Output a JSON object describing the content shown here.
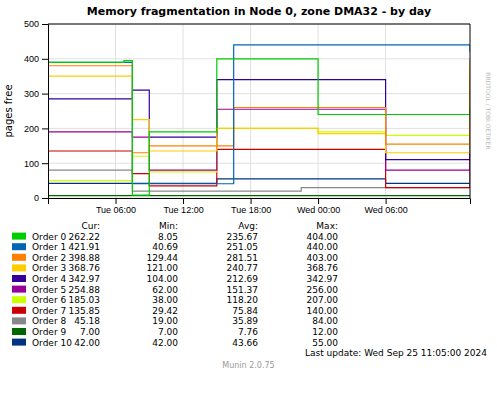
{
  "chart_data": {
    "type": "line",
    "line_style": "step",
    "title": "Memory fragmentation in Node 0, zone DMA32 - by day",
    "y_label": "pages free",
    "categories": [
      null,
      null,
      null,
      null,
      null,
      null,
      null,
      null,
      "Tue 06:00",
      null,
      null,
      null,
      null,
      null,
      null,
      null,
      "Tue 12:00",
      null,
      null,
      null,
      null,
      null,
      null,
      null,
      "Tue 18:00",
      null,
      null,
      null,
      null,
      null,
      null,
      null,
      "Wed 00:00",
      null,
      null,
      null,
      null,
      null,
      null,
      null,
      "Wed 06:00",
      null,
      null,
      null,
      null,
      null,
      null,
      null,
      null,
      null,
      null
    ],
    "ylim": [
      0,
      500
    ],
    "yticks": [
      0,
      100,
      200,
      300,
      400,
      500
    ],
    "grid": true,
    "stat_names": [
      "Cur:",
      "Min:",
      "Avg:",
      "Max:"
    ],
    "annotations": [
      "RRDTOOL / TOBI OETIKER",
      "Last update: Wed Sep 25 11:05:00 2024",
      "Munin 2.0.75"
    ],
    "series": [
      {
        "name": "Order 0",
        "color": "#00cc00",
        "stats": [
          {
            "value": 262.22,
            "label": "262.22"
          },
          {
            "value": 8.05,
            "label": "8.05"
          },
          {
            "value": 235.67,
            "label": "235.67"
          },
          {
            "value": 404,
            "label": "404.00"
          }
        ],
        "values": [
          390,
          390,
          390,
          390,
          390,
          390,
          390,
          390,
          390,
          395,
          8,
          8,
          190,
          190,
          190,
          190,
          190,
          190,
          190,
          190,
          400,
          400,
          400,
          400,
          400,
          400,
          400,
          400,
          400,
          400,
          400,
          400,
          240,
          240,
          240,
          240,
          240,
          240,
          240,
          240,
          240,
          240,
          240,
          240,
          240,
          240,
          240,
          240,
          240,
          240,
          262
        ]
      },
      {
        "name": "Order 1",
        "color": "#0066b3",
        "stats": [
          {
            "value": 421.91,
            "label": "421.91"
          },
          {
            "value": 40.69,
            "label": "40.69"
          },
          {
            "value": 251.05,
            "label": "251.05"
          },
          {
            "value": 440,
            "label": "440.00"
          }
        ],
        "values": [
          390,
          390,
          390,
          390,
          390,
          390,
          390,
          390,
          390,
          390,
          41,
          41,
          41,
          41,
          41,
          41,
          41,
          41,
          41,
          41,
          41,
          41,
          440,
          440,
          440,
          440,
          440,
          440,
          440,
          440,
          440,
          440,
          440,
          440,
          440,
          440,
          440,
          440,
          440,
          440,
          440,
          440,
          440,
          440,
          440,
          440,
          440,
          440,
          440,
          440,
          421
        ]
      },
      {
        "name": "Order 2",
        "color": "#ff8000",
        "stats": [
          {
            "value": 398.88,
            "label": "398.88"
          },
          {
            "value": 129.44,
            "label": "129.44"
          },
          {
            "value": 281.51,
            "label": "281.51"
          },
          {
            "value": 403,
            "label": "403.00"
          }
        ],
        "values": [
          380,
          380,
          380,
          380,
          380,
          380,
          380,
          380,
          380,
          380,
          130,
          130,
          150,
          150,
          150,
          150,
          150,
          150,
          150,
          150,
          150,
          150,
          260,
          260,
          260,
          260,
          260,
          260,
          260,
          260,
          260,
          260,
          260,
          260,
          260,
          260,
          260,
          260,
          260,
          260,
          155,
          155,
          155,
          155,
          155,
          155,
          155,
          155,
          155,
          155,
          399
        ]
      },
      {
        "name": "Order 3",
        "color": "#ffcc00",
        "stats": [
          {
            "value": 368.76,
            "label": "368.76"
          },
          {
            "value": 121,
            "label": "121.00"
          },
          {
            "value": 240.77,
            "label": "240.77"
          },
          {
            "value": 368.76,
            "label": "368.76"
          }
        ],
        "values": [
          350,
          350,
          350,
          350,
          350,
          350,
          350,
          350,
          350,
          350,
          225,
          225,
          135,
          135,
          135,
          135,
          135,
          135,
          135,
          135,
          200,
          200,
          200,
          200,
          200,
          200,
          200,
          200,
          200,
          200,
          200,
          200,
          185,
          185,
          185,
          185,
          185,
          185,
          185,
          185,
          130,
          130,
          130,
          130,
          130,
          130,
          130,
          130,
          130,
          130,
          369
        ]
      },
      {
        "name": "Order 4",
        "color": "#330099",
        "stats": [
          {
            "value": 342.97,
            "label": "342.97"
          },
          {
            "value": 104,
            "label": "104.00"
          },
          {
            "value": 212.69,
            "label": "212.69"
          },
          {
            "value": 342.97,
            "label": "342.97"
          }
        ],
        "values": [
          285,
          285,
          285,
          285,
          285,
          285,
          285,
          285,
          285,
          285,
          310,
          310,
          175,
          175,
          175,
          175,
          175,
          175,
          175,
          175,
          340,
          340,
          340,
          340,
          340,
          340,
          340,
          340,
          340,
          340,
          340,
          340,
          340,
          340,
          340,
          340,
          340,
          340,
          340,
          340,
          110,
          110,
          110,
          110,
          110,
          110,
          110,
          110,
          110,
          110,
          343
        ]
      },
      {
        "name": "Order 5",
        "color": "#990099",
        "stats": [
          {
            "value": 254.88,
            "label": "254.88"
          },
          {
            "value": 62,
            "label": "62.00"
          },
          {
            "value": 151.37,
            "label": "151.37"
          },
          {
            "value": 256,
            "label": "256.00"
          }
        ],
        "values": [
          190,
          190,
          190,
          190,
          190,
          190,
          190,
          190,
          190,
          190,
          175,
          175,
          80,
          80,
          80,
          80,
          80,
          80,
          80,
          80,
          255,
          255,
          255,
          255,
          255,
          255,
          255,
          255,
          255,
          255,
          255,
          255,
          255,
          255,
          255,
          255,
          255,
          255,
          255,
          255,
          80,
          80,
          80,
          80,
          80,
          80,
          80,
          80,
          80,
          80,
          255
        ]
      },
      {
        "name": "Order 6",
        "color": "#ccff00",
        "stats": [
          {
            "value": 185.03,
            "label": "185.03"
          },
          {
            "value": 38,
            "label": "38.00"
          },
          {
            "value": 118.2,
            "label": "118.20"
          },
          {
            "value": 207,
            "label": "207.00"
          }
        ],
        "values": [
          50,
          50,
          50,
          50,
          50,
          50,
          50,
          50,
          50,
          50,
          120,
          120,
          75,
          75,
          75,
          75,
          75,
          75,
          75,
          75,
          200,
          200,
          200,
          200,
          200,
          200,
          200,
          200,
          200,
          200,
          200,
          200,
          190,
          190,
          190,
          190,
          190,
          190,
          190,
          190,
          180,
          180,
          180,
          180,
          180,
          180,
          180,
          180,
          180,
          180,
          185
        ]
      },
      {
        "name": "Order 7",
        "color": "#cc0000",
        "stats": [
          {
            "value": 135.85,
            "label": "135.85"
          },
          {
            "value": 29.42,
            "label": "29.42"
          },
          {
            "value": 75.84,
            "label": "75.84"
          },
          {
            "value": 140,
            "label": "140.00"
          }
        ],
        "values": [
          135,
          135,
          135,
          135,
          135,
          135,
          135,
          135,
          135,
          135,
          70,
          70,
          35,
          35,
          35,
          35,
          35,
          35,
          35,
          35,
          140,
          140,
          140,
          140,
          140,
          140,
          140,
          140,
          140,
          140,
          140,
          140,
          140,
          140,
          140,
          140,
          140,
          140,
          140,
          140,
          30,
          30,
          30,
          30,
          30,
          30,
          30,
          30,
          30,
          30,
          136
        ]
      },
      {
        "name": "Order 8",
        "color": "#888888",
        "stats": [
          {
            "value": 45.18,
            "label": "45.18"
          },
          {
            "value": 19,
            "label": "19.00"
          },
          {
            "value": 35.89,
            "label": "35.89"
          },
          {
            "value": 84,
            "label": "84.00"
          }
        ],
        "values": [
          80,
          80,
          80,
          80,
          80,
          80,
          80,
          80,
          80,
          80,
          20,
          20,
          20,
          20,
          20,
          20,
          20,
          20,
          20,
          20,
          20,
          20,
          20,
          20,
          20,
          20,
          20,
          20,
          20,
          20,
          30,
          30,
          30,
          30,
          30,
          30,
          30,
          30,
          30,
          30,
          30,
          30,
          30,
          30,
          30,
          30,
          30,
          30,
          30,
          30,
          45
        ]
      },
      {
        "name": "Order 9",
        "color": "#006600",
        "stats": [
          {
            "value": 7,
            "label": "7.00"
          },
          {
            "value": 7,
            "label": "7.00"
          },
          {
            "value": 7.76,
            "label": "7.76"
          },
          {
            "value": 12,
            "label": "12.00"
          }
        ],
        "values": [
          7,
          7,
          7,
          7,
          7,
          7,
          7,
          7,
          7,
          7,
          7,
          7,
          7,
          7,
          7,
          7,
          7,
          7,
          7,
          7,
          7,
          7,
          7,
          7,
          7,
          7,
          7,
          7,
          7,
          7,
          7,
          7,
          7,
          7,
          7,
          7,
          7,
          7,
          7,
          7,
          7,
          7,
          7,
          7,
          7,
          7,
          7,
          7,
          7,
          7,
          7
        ]
      },
      {
        "name": "Order 10",
        "color": "#003380",
        "stats": [
          {
            "value": 42,
            "label": "42.00"
          },
          {
            "value": 42,
            "label": "42.00"
          },
          {
            "value": 43.66,
            "label": "43.66"
          },
          {
            "value": 55,
            "label": "55.00"
          }
        ],
        "values": [
          42,
          42,
          42,
          42,
          42,
          42,
          42,
          42,
          42,
          42,
          42,
          42,
          42,
          42,
          42,
          42,
          42,
          42,
          42,
          42,
          55,
          55,
          55,
          55,
          55,
          55,
          55,
          55,
          55,
          55,
          55,
          55,
          55,
          55,
          55,
          55,
          55,
          55,
          55,
          55,
          42,
          42,
          42,
          42,
          42,
          42,
          42,
          42,
          42,
          42,
          42
        ]
      }
    ]
  }
}
